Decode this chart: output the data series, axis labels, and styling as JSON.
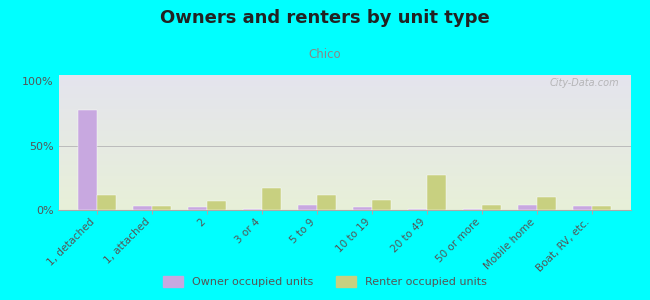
{
  "title": "Owners and renters by unit type",
  "subtitle": "Chico",
  "categories": [
    "1, detached",
    "1, attached",
    "2",
    "3 or 4",
    "5 to 9",
    "10 to 19",
    "20 to 49",
    "50 or more",
    "Mobile home",
    "Boat, RV, etc."
  ],
  "owner_values": [
    78,
    3,
    2,
    1,
    4,
    2,
    0.5,
    0.5,
    4,
    3
  ],
  "renter_values": [
    12,
    3,
    7,
    17,
    12,
    8,
    27,
    4,
    10,
    3
  ],
  "owner_color": "#c8a8e0",
  "renter_color": "#c8d080",
  "background_color": "#00ffff",
  "plot_bg_top": "#e4e4ee",
  "plot_bg_bottom": "#e8f0d8",
  "bar_width": 0.35,
  "ylim": [
    0,
    105
  ],
  "yticks": [
    0,
    50,
    100
  ],
  "ytick_labels": [
    "0%",
    "50%",
    "100%"
  ],
  "owner_label": "Owner occupied units",
  "renter_label": "Renter occupied units",
  "watermark": "City-Data.com"
}
